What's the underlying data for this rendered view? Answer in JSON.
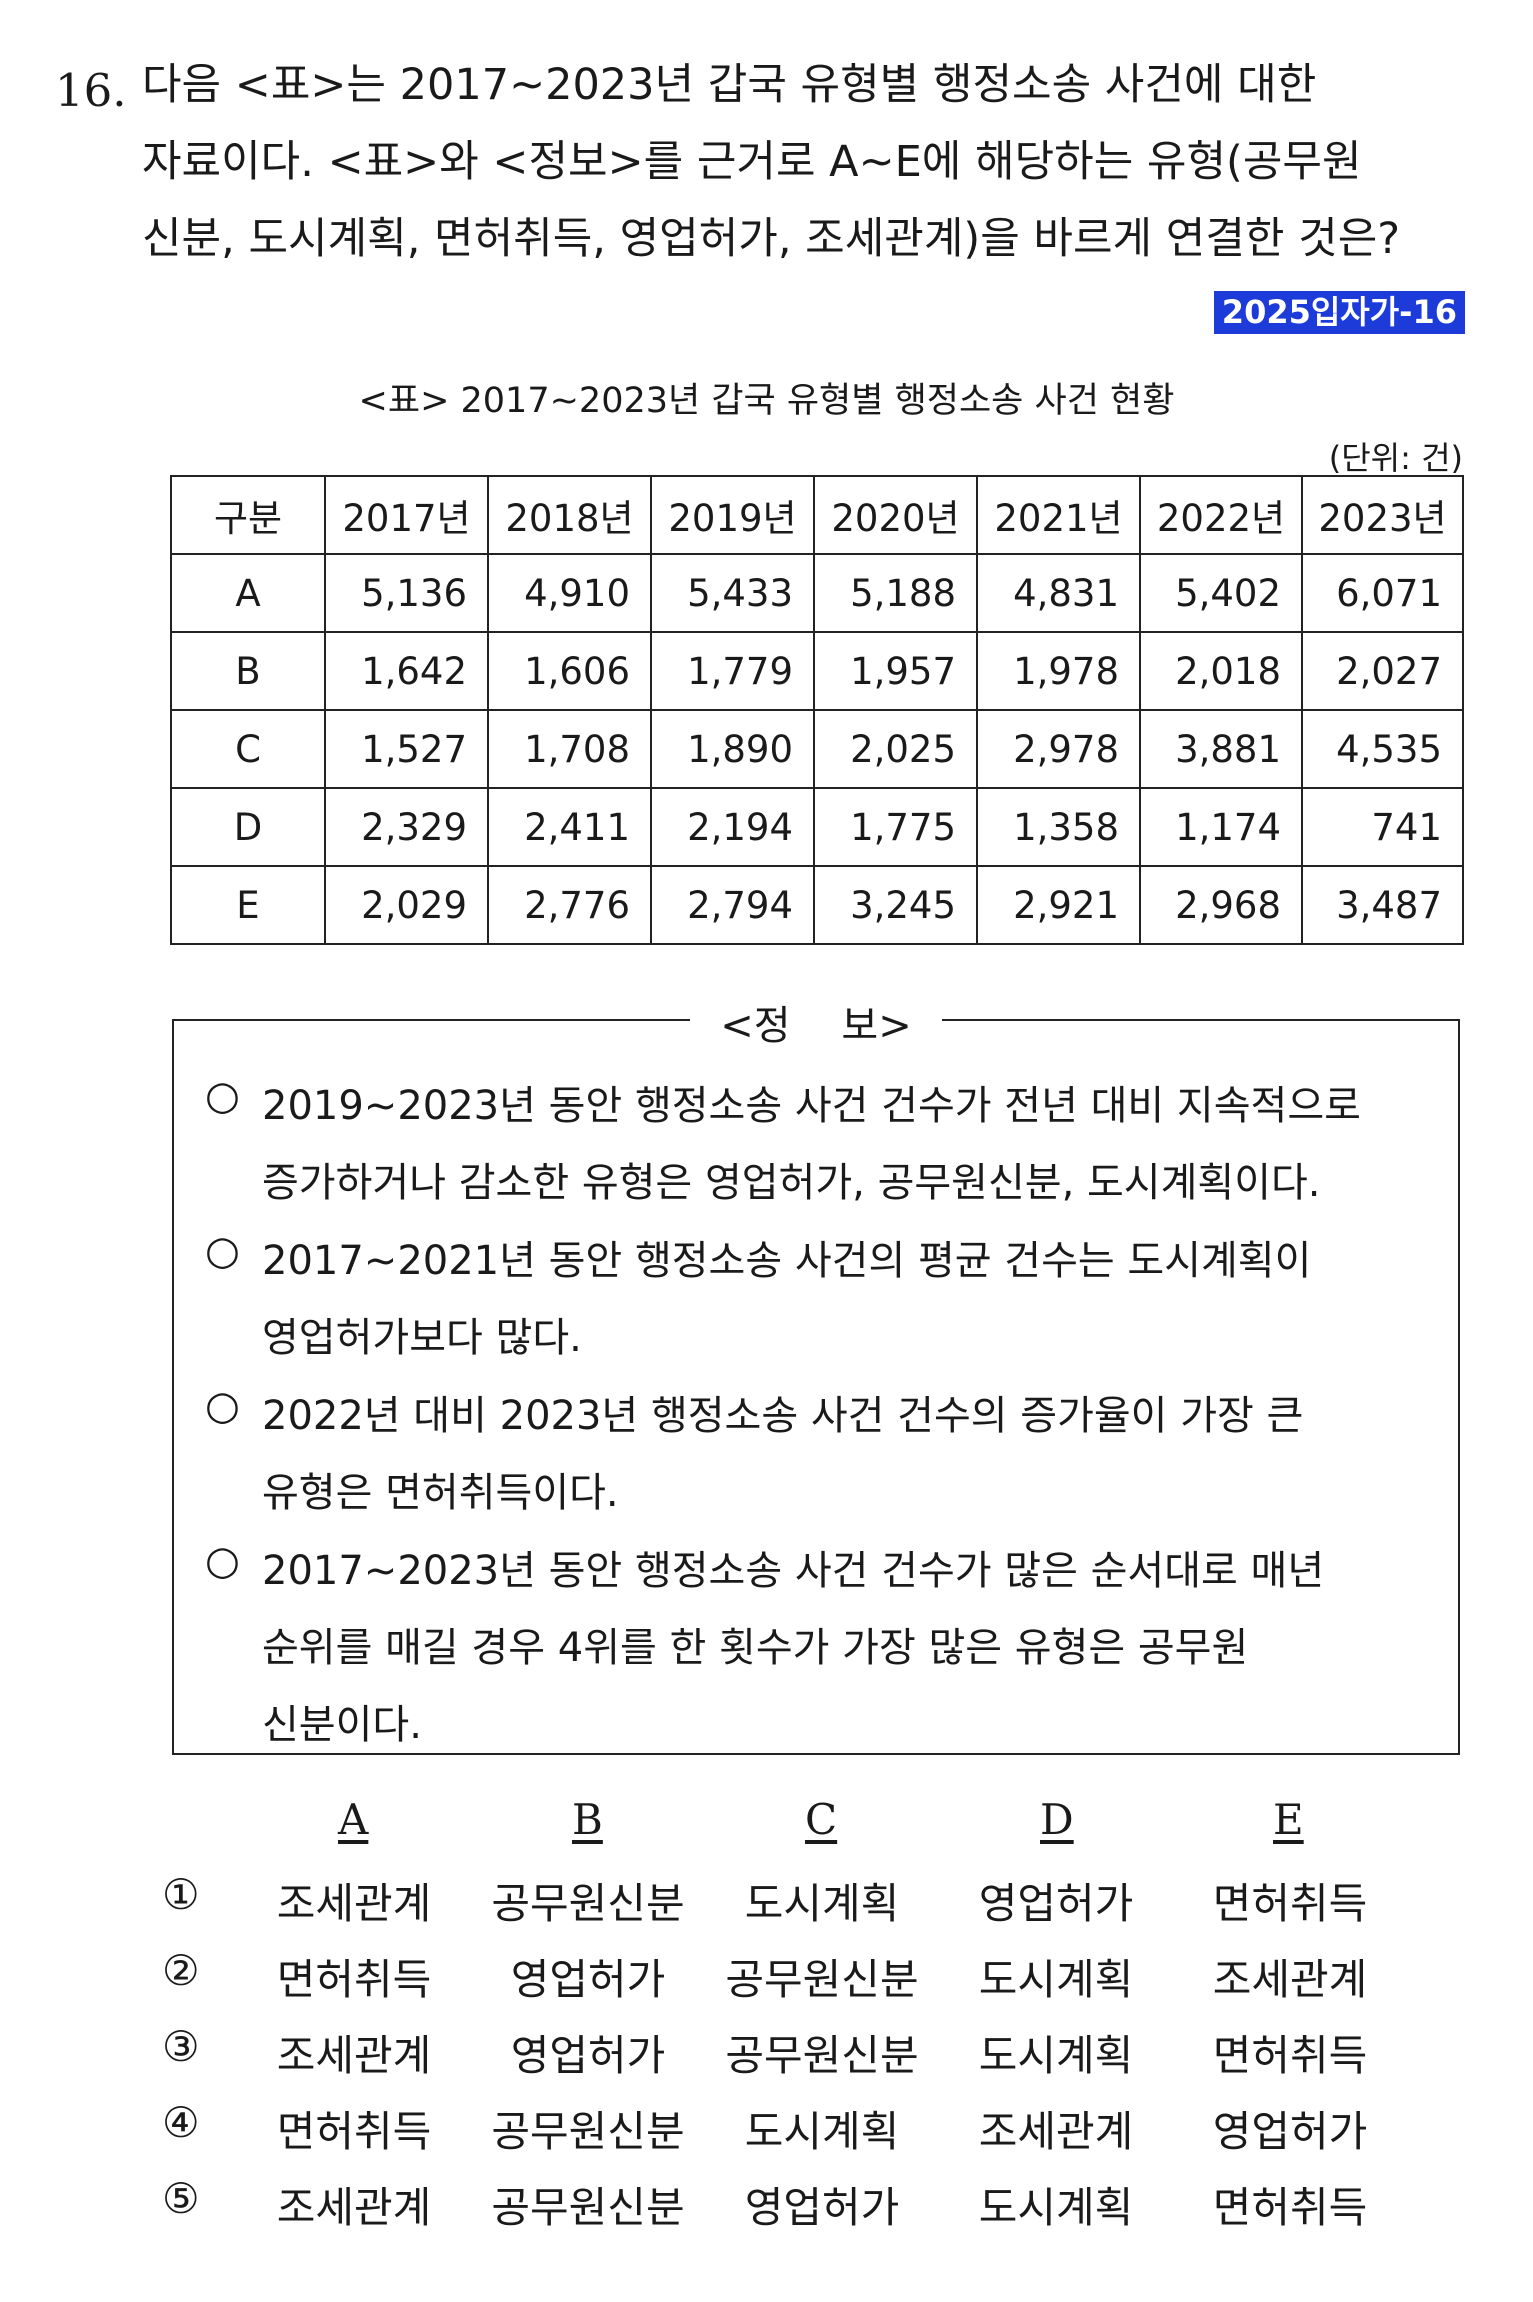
{
  "question": {
    "number": "16.",
    "lines": [
      "다음 <표>는 2017~2023년 갑국 유형별 행정소송 사건에 대한",
      "자료이다. <표>와 <정보>를 근거로 A~E에 해당하는 유형(공무원",
      "신분, 도시계획, 면허취득, 영업허가, 조세관계)을 바르게 연결한 것은?"
    ],
    "tag": "2025입자가-16"
  },
  "table": {
    "caption": "<표> 2017~2023년 갑국 유형별 행정소송 사건 현황",
    "unit": "(단위: 건)",
    "headers": [
      "구분",
      "2017년",
      "2018년",
      "2019년",
      "2020년",
      "2021년",
      "2022년",
      "2023년"
    ],
    "rows": [
      {
        "label": "A",
        "values": [
          "5,136",
          "4,910",
          "5,433",
          "5,188",
          "4,831",
          "5,402",
          "6,071"
        ]
      },
      {
        "label": "B",
        "values": [
          "1,642",
          "1,606",
          "1,779",
          "1,957",
          "1,978",
          "2,018",
          "2,027"
        ]
      },
      {
        "label": "C",
        "values": [
          "1,527",
          "1,708",
          "1,890",
          "2,025",
          "2,978",
          "3,881",
          "4,535"
        ]
      },
      {
        "label": "D",
        "values": [
          "2,329",
          "2,411",
          "2,194",
          "1,775",
          "1,358",
          "1,174",
          "741"
        ]
      },
      {
        "label": "E",
        "values": [
          "2,029",
          "2,776",
          "2,794",
          "3,245",
          "2,921",
          "2,968",
          "3,487"
        ]
      }
    ]
  },
  "info": {
    "title": "<정    보>",
    "bullet_symbol": "○",
    "items": [
      {
        "lines": [
          "2019~2023년 동안 행정소송 사건 건수가 전년 대비 지속적으로",
          "증가하거나 감소한 유형은 영업허가, 공무원신분, 도시계획이다."
        ]
      },
      {
        "lines": [
          "2017~2021년 동안 행정소송 사건의 평균 건수는 도시계획이",
          "영업허가보다 많다."
        ]
      },
      {
        "lines": [
          "2022년 대비 2023년 행정소송 사건 건수의 증가율이 가장 큰",
          "유형은 면허취득이다."
        ]
      },
      {
        "lines": [
          "2017~2023년 동안 행정소송 사건 건수가 많은 순서대로 매년",
          "순위를 매길 경우 4위를 한 횟수가 가장 많은 유형은 공무원",
          "신분이다."
        ]
      }
    ]
  },
  "choices": {
    "headers": [
      "A",
      "B",
      "C",
      "D",
      "E"
    ],
    "options": [
      {
        "num": "①",
        "values": [
          "조세관계",
          "공무원신분",
          "도시계획",
          "영업허가",
          "면허취득"
        ]
      },
      {
        "num": "②",
        "values": [
          "면허취득",
          "영업허가",
          "공무원신분",
          "도시계획",
          "조세관계"
        ]
      },
      {
        "num": "③",
        "values": [
          "조세관계",
          "영업허가",
          "공무원신분",
          "도시계획",
          "면허취득"
        ]
      },
      {
        "num": "④",
        "values": [
          "면허취득",
          "공무원신분",
          "도시계획",
          "조세관계",
          "영업허가"
        ]
      },
      {
        "num": "⑤",
        "values": [
          "조세관계",
          "공무원신분",
          "영업허가",
          "도시계획",
          "면허취득"
        ]
      }
    ]
  }
}
